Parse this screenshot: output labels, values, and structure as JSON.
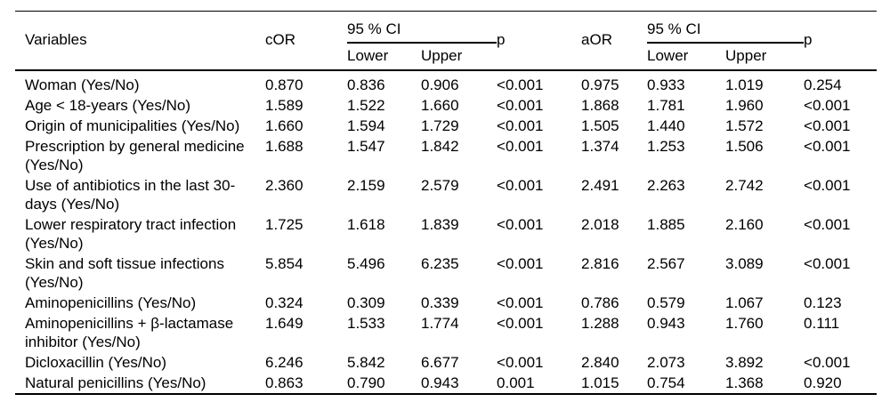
{
  "page": {
    "background_color": "#ffffff",
    "text_color": "#000000",
    "rule_color": "#000000"
  },
  "table": {
    "header": {
      "variables": "Variables",
      "cor": "cOR",
      "ci": "95 % CI",
      "lower": "Lower",
      "upper": "Upper",
      "p": "p",
      "aor": "aOR"
    },
    "rows": [
      {
        "variable": "Woman (Yes/No)",
        "cor": "0.870",
        "cor_lower": "0.836",
        "cor_upper": "0.906",
        "cor_p": "<0.001",
        "aor": "0.975",
        "aor_lower": "0.933",
        "aor_upper": "1.019",
        "aor_p": "0.254"
      },
      {
        "variable": "Age < 18-years (Yes/No)",
        "cor": "1.589",
        "cor_lower": "1.522",
        "cor_upper": "1.660",
        "cor_p": "<0.001",
        "aor": "1.868",
        "aor_lower": "1.781",
        "aor_upper": "1.960",
        "aor_p": "<0.001"
      },
      {
        "variable": "Origin of municipalities (Yes/No)",
        "cor": "1.660",
        "cor_lower": "1.594",
        "cor_upper": "1.729",
        "cor_p": "<0.001",
        "aor": "1.505",
        "aor_lower": "1.440",
        "aor_upper": "1.572",
        "aor_p": "<0.001"
      },
      {
        "variable": "Prescription by general medicine (Yes/No)",
        "cor": "1.688",
        "cor_lower": "1.547",
        "cor_upper": "1.842",
        "cor_p": "<0.001",
        "aor": "1.374",
        "aor_lower": "1.253",
        "aor_upper": "1.506",
        "aor_p": "<0.001"
      },
      {
        "variable": "Use of antibiotics in the last 30-days (Yes/No)",
        "cor": "2.360",
        "cor_lower": "2.159",
        "cor_upper": "2.579",
        "cor_p": "<0.001",
        "aor": "2.491",
        "aor_lower": "2.263",
        "aor_upper": "2.742",
        "aor_p": "<0.001"
      },
      {
        "variable": "Lower respiratory tract infection (Yes/No)",
        "cor": "1.725",
        "cor_lower": "1.618",
        "cor_upper": "1.839",
        "cor_p": "<0.001",
        "aor": "2.018",
        "aor_lower": "1.885",
        "aor_upper": "2.160",
        "aor_p": "<0.001"
      },
      {
        "variable": "Skin and soft tissue infections (Yes/No)",
        "cor": "5.854",
        "cor_lower": "5.496",
        "cor_upper": "6.235",
        "cor_p": "<0.001",
        "aor": "2.816",
        "aor_lower": "2.567",
        "aor_upper": "3.089",
        "aor_p": "<0.001"
      },
      {
        "variable": "Aminopenicillins (Yes/No)",
        "cor": "0.324",
        "cor_lower": "0.309",
        "cor_upper": "0.339",
        "cor_p": "<0.001",
        "aor": "0.786",
        "aor_lower": "0.579",
        "aor_upper": "1.067",
        "aor_p": "0.123"
      },
      {
        "variable": "Aminopenicillins + β-lactamase inhibitor (Yes/No)",
        "cor": "1.649",
        "cor_lower": "1.533",
        "cor_upper": "1.774",
        "cor_p": "<0.001",
        "aor": "1.288",
        "aor_lower": "0.943",
        "aor_upper": "1.760",
        "aor_p": "0.111"
      },
      {
        "variable": "Dicloxacillin (Yes/No)",
        "cor": "6.246",
        "cor_lower": "5.842",
        "cor_upper": "6.677",
        "cor_p": "<0.001",
        "aor": "2.840",
        "aor_lower": "2.073",
        "aor_upper": "3.892",
        "aor_p": "<0.001"
      },
      {
        "variable": "Natural penicillins (Yes/No)",
        "cor": "0.863",
        "cor_lower": "0.790",
        "cor_upper": "0.943",
        "cor_p": "0.001",
        "aor": "1.015",
        "aor_lower": "0.754",
        "aor_upper": "1.368",
        "aor_p": "0.920"
      }
    ]
  }
}
